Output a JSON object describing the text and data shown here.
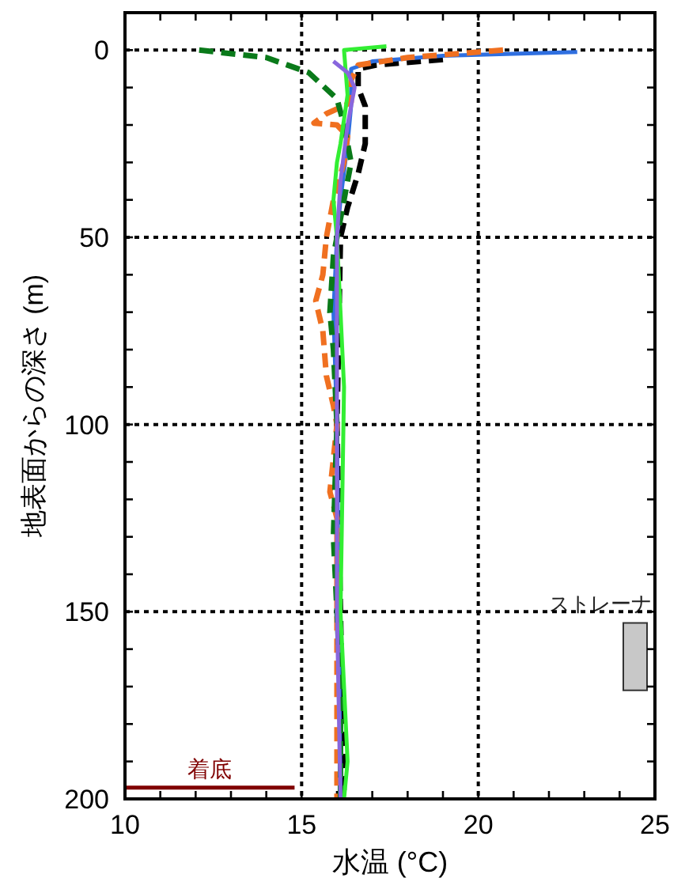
{
  "chart_data": {
    "type": "line",
    "xlabel": "水温 (°C)",
    "ylabel": "地表面からの深さ (m)",
    "xlim": [
      10,
      25
    ],
    "ylim": [
      200,
      -10
    ],
    "xticks": [
      10,
      {
        "value": 11,
        "label": null
      },
      {
        "value": 12,
        "label": null
      },
      {
        "value": 13,
        "label": null
      },
      {
        "value": 14,
        "label": null
      },
      15,
      {
        "value": 16,
        "label": null
      },
      {
        "value": 17,
        "label": null
      },
      {
        "value": 18,
        "label": null
      },
      {
        "value": 19,
        "label": null
      },
      20,
      {
        "value": 21,
        "label": null
      },
      {
        "value": 22,
        "label": null
      },
      {
        "value": 23,
        "label": null
      },
      {
        "value": 24,
        "label": null
      },
      25
    ],
    "yticks": [
      0,
      {
        "value": 10,
        "label": null
      },
      {
        "value": 20,
        "label": null
      },
      {
        "value": 30,
        "label": null
      },
      {
        "value": 40,
        "label": null
      },
      50,
      {
        "value": 60,
        "label": null
      },
      {
        "value": 70,
        "label": null
      },
      {
        "value": 80,
        "label": null
      },
      {
        "value": 90,
        "label": null
      },
      100,
      {
        "value": 110,
        "label": null
      },
      {
        "value": 120,
        "label": null
      },
      {
        "value": 130,
        "label": null
      },
      {
        "value": 140,
        "label": null
      },
      150,
      {
        "value": 160,
        "label": null
      },
      {
        "value": 170,
        "label": null
      },
      {
        "value": 180,
        "label": null
      },
      {
        "value": 190,
        "label": null
      },
      200
    ],
    "grid": true,
    "marker": "none",
    "series": [
      {
        "color": "#000000",
        "line_style": "dashed",
        "x": [
          19.0,
          17.1,
          16.6,
          16.6,
          16.8,
          16.8,
          16.6,
          16.3,
          16.1,
          16.0,
          16.1,
          16.2
        ],
        "values": [
          2.5,
          4,
          5,
          10,
          15,
          25,
          33,
          42,
          50,
          100,
          150,
          200
        ]
      },
      {
        "color": "#2f6fe0",
        "line_style": "solid",
        "x": [
          22.8,
          19.0,
          17.0,
          16.4,
          16.4,
          16.3,
          16.1,
          16.0,
          15.9,
          16.0,
          16.05,
          16.1
        ],
        "values": [
          0.5,
          1.5,
          3,
          5,
          15,
          25,
          40,
          50,
          70,
          100,
          150,
          200
        ]
      },
      {
        "color": "#f07020",
        "line_style": "dashed",
        "x": [
          20.7,
          18.0,
          16.6,
          16.4,
          16.4,
          15.7,
          15.35,
          16.0,
          16.3,
          16.2,
          15.9,
          15.7,
          15.6,
          15.4,
          15.6,
          15.7,
          15.9,
          16.0,
          15.8,
          16.0,
          16.0
        ],
        "values": [
          0,
          2,
          4,
          8,
          14,
          17,
          19.5,
          20,
          23,
          30,
          40,
          50,
          60,
          67,
          75,
          87,
          95,
          100,
          118,
          125,
          200
        ]
      },
      {
        "color": "#0a7a1a",
        "line_style": "dashed",
        "x": [
          12.1,
          14.0,
          15.2,
          16.0,
          16.2,
          16.4,
          16.2,
          15.9,
          15.8,
          15.9,
          16.0,
          15.9,
          16.1,
          16.1
        ],
        "values": [
          0,
          2,
          6,
          13,
          20,
          30,
          40,
          55,
          70,
          80,
          100,
          130,
          170,
          200
        ]
      },
      {
        "color": "#33ee33",
        "line_style": "solid",
        "x": [
          17.4,
          16.2,
          16.3,
          16.1,
          16.0,
          15.9,
          16.0,
          16.2,
          16.1,
          16.3,
          16.2
        ],
        "values": [
          -1,
          0,
          12,
          25,
          30,
          40,
          50,
          90,
          150,
          190,
          200
        ]
      },
      {
        "color": "#8866dd",
        "line_style": "solid",
        "x": [
          15.9,
          16.3,
          16.5,
          16.3,
          16.1,
          16.0,
          16.0,
          16.0,
          16.1
        ],
        "values": [
          3,
          6,
          10,
          20,
          35,
          50,
          100,
          150,
          200
        ]
      },
      {
        "name": "着底",
        "color": "#800000",
        "line_style": "solid",
        "x": [
          10,
          14.8
        ],
        "values": [
          197,
          197
        ]
      }
    ],
    "bands": [
      {
        "axis": "y",
        "from": 153,
        "to": 171,
        "label": "ストレーナ",
        "color": "#c8c8c8"
      }
    ]
  }
}
